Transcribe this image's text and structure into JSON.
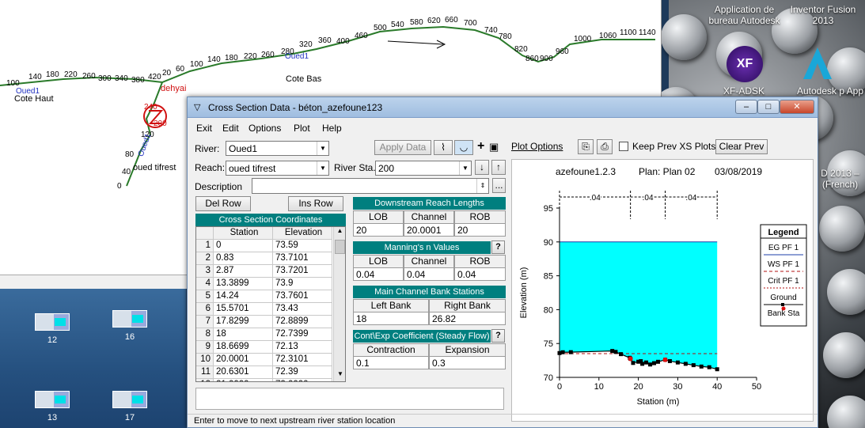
{
  "desktop": {
    "right_icons": [
      {
        "label": "Application de bureau Autodesk"
      },
      {
        "label": "Inventor Fusion 2013"
      },
      {
        "label": "XF-ADSK 2017"
      },
      {
        "label": "Autodesk p App"
      },
      {
        "label": "D 2013 – (French)"
      }
    ],
    "left_icons": [
      {
        "label": "12"
      },
      {
        "label": "16"
      },
      {
        "label": "13"
      },
      {
        "label": "17"
      }
    ]
  },
  "river_window": {
    "labels": {
      "cote_haut": "Cote Haut",
      "cote_bas": "Cote Bas",
      "oued_tifrest": "oued tifrest",
      "oued1a": "Oued1",
      "oued1b": "Oued1",
      "oued1c": "Oued1",
      "dehyai": "dehyai",
      "num240": "240",
      "num200": "200"
    },
    "stations": [
      "100",
      "140",
      "180",
      "220",
      "260",
      "300",
      "340",
      "380",
      "420",
      "20",
      "60",
      "100",
      "140",
      "180",
      "220",
      "260",
      "280",
      "320",
      "360",
      "400",
      "460",
      "500",
      "540",
      "580",
      "620",
      "660",
      "700",
      "740",
      "780",
      "820",
      "860",
      "900",
      "960",
      "1000",
      "1060",
      "1100",
      "1140",
      "80",
      "40",
      "0",
      "120",
      "160"
    ]
  },
  "dialog": {
    "title": "Cross Section Data - béton_azefoune123",
    "min": "–",
    "max": "□",
    "close": "✕",
    "menu": [
      "Exit",
      "Edit",
      "Options",
      "Plot",
      "Help"
    ],
    "river_label": "River:",
    "river_value": "Oued1",
    "reach_label": "Reach:",
    "reach_value": "oued tifrest",
    "river_sta_label": "River Sta.:",
    "river_sta_value": "200",
    "apply_data": "Apply Data",
    "description_label": "Description",
    "description_more": "...",
    "del_row": "Del Row",
    "ins_row": "Ins Row",
    "xs_coords_header": "Cross Section Coordinates",
    "grid": {
      "headers": [
        "Station",
        "Elevation"
      ],
      "rows": [
        [
          "1",
          "0",
          "73.59"
        ],
        [
          "2",
          "0.83",
          "73.7101"
        ],
        [
          "3",
          "2.87",
          "73.7201"
        ],
        [
          "4",
          "13.3899",
          "73.9"
        ],
        [
          "5",
          "14.24",
          "73.7601"
        ],
        [
          "6",
          "15.5701",
          "73.43"
        ],
        [
          "7",
          "17.8299",
          "72.8899"
        ],
        [
          "8",
          "18",
          "72.7399"
        ],
        [
          "9",
          "18.6699",
          "72.13"
        ],
        [
          "10",
          "20.0001",
          "72.3101"
        ],
        [
          "11",
          "20.6301",
          "72.39"
        ],
        [
          "12",
          "21.0000",
          "72.0000"
        ]
      ]
    },
    "downstream": {
      "header": "Downstream Reach Lengths",
      "cols": [
        "LOB",
        "Channel",
        "ROB"
      ],
      "values": [
        "20",
        "20.0001",
        "20"
      ]
    },
    "mannings": {
      "header": "Manning's n Values",
      "cols": [
        "LOB",
        "Channel",
        "ROB"
      ],
      "values": [
        "0.04",
        "0.04",
        "0.04"
      ],
      "help": "?"
    },
    "bank_stations": {
      "header": "Main Channel Bank Stations",
      "cols": [
        "Left Bank",
        "Right Bank"
      ],
      "values": [
        "18",
        "26.82"
      ]
    },
    "coefficients": {
      "header": "Cont\\Exp Coefficient (Steady Flow)",
      "cols": [
        "Contraction",
        "Expansion"
      ],
      "values": [
        "0.1",
        "0.3"
      ],
      "help": "?"
    },
    "plot_options": "Plot Options",
    "keep_prev": "Keep Prev XS Plots",
    "clear_prev": "Clear Prev",
    "status": "Enter to move to next upstream river station location"
  },
  "chart_data": {
    "type": "line",
    "title_left": "azefoune1.2.3",
    "title_plan": "Plan: Plan 02",
    "title_date": "03/08/2019",
    "xlabel": "Station (m)",
    "ylabel": "Elevation (m)",
    "xlim": [
      0,
      50
    ],
    "ylim": [
      70,
      95
    ],
    "xticks": [
      0,
      10,
      20,
      30,
      40,
      50
    ],
    "yticks": [
      70,
      75,
      80,
      85,
      90,
      95
    ],
    "n_values": [
      ".04",
      ".04",
      ".04"
    ],
    "n_breaks": [
      0,
      18,
      26.82,
      40
    ],
    "water_surface": 90,
    "crit_ws": 73.5,
    "ground": {
      "x": [
        0,
        0.83,
        2.87,
        13.39,
        14.24,
        15.57,
        17.83,
        18,
        18.67,
        20,
        20.63,
        21,
        22,
        23,
        24,
        25,
        26.82,
        28,
        30,
        32,
        34,
        36,
        38,
        40
      ],
      "y": [
        73.59,
        73.71,
        73.72,
        73.9,
        73.76,
        73.43,
        72.89,
        72.74,
        72.13,
        72.31,
        72.39,
        72,
        72.2,
        71.9,
        72.1,
        72.3,
        72.6,
        72.4,
        72.2,
        72,
        71.8,
        71.6,
        71.5,
        71.2
      ]
    },
    "bank_stations": [
      18,
      26.82
    ],
    "legend": {
      "title": "Legend",
      "items": [
        "EG PF 1",
        "WS PF 1",
        "Crit PF 1",
        "Ground",
        "Bank Sta"
      ]
    },
    "colors": {
      "water": "#00ffff",
      "eg": "#1e3fa8",
      "crit": "#b01010",
      "ground": "#000000",
      "bank": "#e01010"
    }
  }
}
